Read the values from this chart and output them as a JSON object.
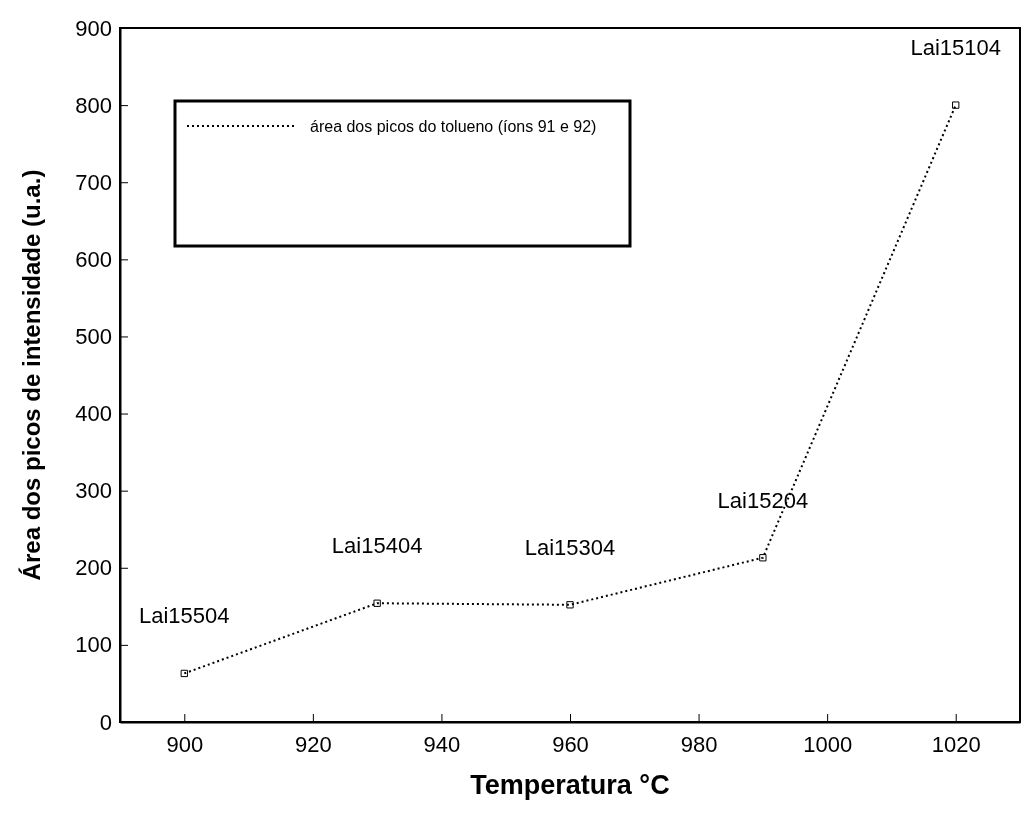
{
  "chart_data": {
    "type": "line",
    "xlabel": "Temperatura °C",
    "ylabel": "Área dos picos de intensidade (u.a.)",
    "x": [
      900,
      930,
      960,
      990,
      1020
    ],
    "series": [
      {
        "name": "área dos picos do tolueno (íons 91 e 92)",
        "color": "#000000",
        "values": [
          63,
          154,
          152,
          213,
          800
        ]
      }
    ],
    "xlim": [
      890,
      1030
    ],
    "ylim": [
      0,
      900
    ],
    "xticks": [
      900,
      920,
      940,
      960,
      980,
      1000,
      1020
    ],
    "yticks": [
      0,
      100,
      200,
      300,
      400,
      500,
      600,
      700,
      800,
      900
    ],
    "grid": false,
    "legend": "top left",
    "marker": "square",
    "line_style": "dotted",
    "annotations": [
      {
        "text": "Lai15504",
        "x": 900,
        "y": 63
      },
      {
        "text": "Lai15404",
        "x": 930,
        "y": 154
      },
      {
        "text": "Lai15304",
        "x": 960,
        "y": 152
      },
      {
        "text": "Lai15204",
        "x": 990,
        "y": 213
      },
      {
        "text": "Lai15104",
        "x": 1020,
        "y": 800
      }
    ]
  }
}
